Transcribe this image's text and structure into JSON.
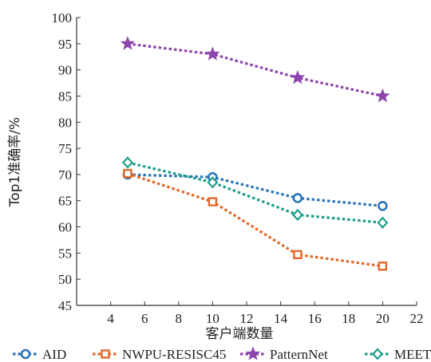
{
  "chart_data": {
    "type": "line",
    "xlabel": "客户端数量",
    "ylabel": "Top1准确率/%",
    "xlim": [
      2,
      22
    ],
    "ylim": [
      45,
      100
    ],
    "xticks": [
      4,
      6,
      8,
      10,
      12,
      14,
      16,
      18,
      20,
      22
    ],
    "yticks": [
      45,
      50,
      55,
      60,
      65,
      70,
      75,
      80,
      85,
      90,
      95,
      100
    ],
    "grid": false,
    "legend": "bottom",
    "x": [
      5,
      10,
      15,
      20
    ],
    "series": [
      {
        "name": "AID",
        "values": [
          70.0,
          69.5,
          65.5,
          64.0
        ],
        "color": "#2e75b6",
        "marker": "circle"
      },
      {
        "name": "NWPU-RESISC45",
        "values": [
          70.2,
          64.8,
          54.7,
          52.5
        ],
        "color": "#e0692a",
        "marker": "square"
      },
      {
        "name": "PatternNet",
        "values": [
          95.0,
          93.0,
          88.5,
          85.0
        ],
        "color": "#8e44ad",
        "marker": "star"
      },
      {
        "name": "MEET",
        "values": [
          72.3,
          68.5,
          62.3,
          60.8
        ],
        "color": "#1f9e8a",
        "marker": "diamond"
      }
    ]
  }
}
